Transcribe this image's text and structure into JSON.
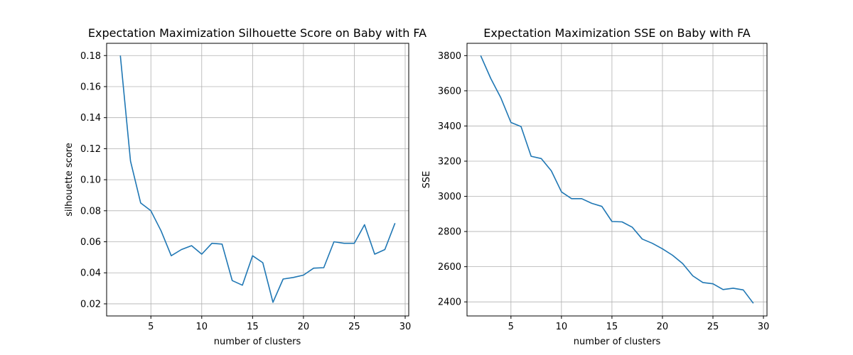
{
  "chart_data": [
    {
      "type": "line",
      "title": "Expectation Maximization Silhouette Score on Baby with FA",
      "xlabel": "number of clusters",
      "ylabel": "silhouette score",
      "xlim": [
        0.65,
        30.35
      ],
      "ylim": [
        0.0122,
        0.1879
      ],
      "xticks": [
        5,
        10,
        15,
        20,
        25,
        30
      ],
      "yticks": [
        0.02,
        0.04,
        0.06,
        0.08,
        0.1,
        0.12,
        0.14,
        0.16,
        0.18
      ],
      "ytick_labels": [
        "0.02",
        "0.04",
        "0.06",
        "0.08",
        "0.10",
        "0.12",
        "0.14",
        "0.16",
        "0.18"
      ],
      "grid": true,
      "color": "#1f77b4",
      "x": [
        2,
        3,
        4,
        5,
        6,
        7,
        8,
        9,
        10,
        11,
        12,
        13,
        14,
        15,
        16,
        17,
        18,
        19,
        20,
        21,
        22,
        23,
        24,
        25,
        26,
        27,
        28,
        29
      ],
      "y": [
        0.18,
        0.112,
        0.085,
        0.08,
        0.067,
        0.051,
        0.055,
        0.0575,
        0.052,
        0.059,
        0.0585,
        0.035,
        0.032,
        0.051,
        0.0465,
        0.021,
        0.036,
        0.037,
        0.0385,
        0.043,
        0.0433,
        0.06,
        0.059,
        0.059,
        0.071,
        0.052,
        0.055,
        0.072
      ]
    },
    {
      "type": "line",
      "title": "Expectation Maximization SSE on Baby with FA",
      "xlabel": "number of clusters",
      "ylabel": "SSE",
      "xlim": [
        0.65,
        30.35
      ],
      "ylim": [
        2320,
        3870
      ],
      "xticks": [
        5,
        10,
        15,
        20,
        25,
        30
      ],
      "yticks": [
        2400,
        2600,
        2800,
        3000,
        3200,
        3400,
        3600,
        3800
      ],
      "ytick_labels": [
        "2400",
        "2600",
        "2800",
        "3000",
        "3200",
        "3400",
        "3600",
        "3800"
      ],
      "grid": true,
      "color": "#1f77b4",
      "x": [
        2,
        3,
        4,
        5,
        6,
        7,
        8,
        9,
        10,
        11,
        12,
        13,
        14,
        15,
        16,
        17,
        18,
        19,
        20,
        21,
        22,
        23,
        24,
        25,
        26,
        27,
        28,
        29
      ],
      "y": [
        3800,
        3670,
        3560,
        3420,
        3397,
        3228,
        3215,
        3145,
        3025,
        2987,
        2987,
        2960,
        2943,
        2857,
        2855,
        2825,
        2757,
        2733,
        2702,
        2665,
        2618,
        2548,
        2510,
        2503,
        2470,
        2478,
        2468,
        2392
      ]
    }
  ]
}
